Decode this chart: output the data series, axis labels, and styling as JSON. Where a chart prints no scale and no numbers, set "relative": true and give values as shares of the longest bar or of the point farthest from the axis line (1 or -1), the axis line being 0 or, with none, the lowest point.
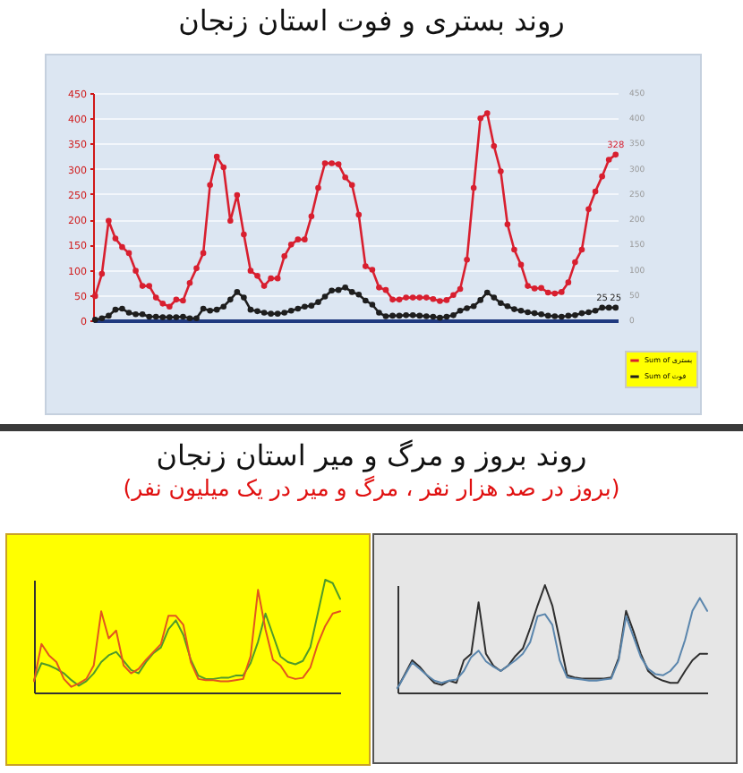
{
  "chart_data": [
    {
      "type": "line",
      "title": "روند بستری و فوت استان زنجان",
      "categories": [
        null,
        null,
        null,
        null,
        null,
        null,
        null,
        null,
        null,
        null,
        null,
        null,
        null,
        null,
        null,
        null,
        null,
        null,
        null,
        null,
        null,
        null,
        null,
        null,
        null,
        null,
        null,
        null,
        null,
        null,
        null,
        null,
        null,
        null,
        null,
        null,
        null,
        null,
        null,
        null,
        null,
        null,
        null,
        null,
        null,
        null,
        null,
        null,
        null,
        null,
        null,
        null,
        null,
        null,
        null,
        null,
        null,
        null,
        null,
        null,
        null,
        null,
        null,
        null,
        null,
        null,
        null,
        null,
        null,
        null,
        null,
        null,
        null,
        null,
        null,
        null,
        null,
        null
      ],
      "series": [
        {
          "name": "Sum of بستری",
          "color": "#d81f2f",
          "values": [
            48,
            92,
            197,
            162,
            145,
            133,
            98,
            68,
            68,
            45,
            33,
            27,
            41,
            39,
            74,
            103,
            133,
            268,
            324,
            303,
            197,
            248,
            170,
            98,
            88,
            68,
            83,
            83,
            127,
            150,
            160,
            160,
            206,
            262,
            311,
            311,
            309,
            283,
            268,
            209,
            107,
            100,
            65,
            60,
            41,
            41,
            45,
            45,
            45,
            45,
            42,
            38,
            40,
            50,
            62,
            120,
            262,
            400,
            410,
            345,
            295,
            190,
            140,
            110,
            68,
            63,
            64,
            55,
            53,
            56,
            75,
            115,
            140,
            220,
            255,
            285,
            318,
            328
          ],
          "value_labels": [
            null,
            null,
            null,
            null,
            null,
            null,
            null,
            null,
            null,
            null,
            null,
            null,
            null,
            null,
            null,
            null,
            null,
            null,
            null,
            null,
            null,
            null,
            null,
            null,
            null,
            null,
            null,
            null,
            null,
            null,
            null,
            null,
            null,
            null,
            null,
            null,
            null,
            null,
            null,
            null,
            null,
            null,
            null,
            null,
            null,
            null,
            null,
            null,
            null,
            null,
            null,
            null,
            null,
            null,
            null,
            null,
            null,
            null,
            null,
            null,
            null,
            null,
            null,
            null,
            null,
            null,
            null,
            null,
            null,
            null,
            null,
            null,
            null,
            null,
            null,
            null,
            null,
            "328"
          ]
        },
        {
          "name": "Sum of فوت",
          "color": "#1e1e1e",
          "axis": "y2",
          "values": [
            1,
            4,
            9,
            21,
            23,
            15,
            12,
            12,
            7,
            7,
            6,
            6,
            6,
            7,
            4,
            4,
            23,
            19,
            21,
            27,
            41,
            56,
            45,
            21,
            18,
            15,
            13,
            13,
            15,
            19,
            23,
            27,
            29,
            36,
            47,
            59,
            60,
            65,
            56,
            51,
            39,
            31,
            15,
            8,
            9,
            9,
            10,
            10,
            9,
            8,
            7,
            5,
            7,
            10,
            19,
            24,
            28,
            40,
            55,
            45,
            34,
            28,
            22,
            19,
            16,
            14,
            12,
            9,
            8,
            7,
            9,
            10,
            14,
            16,
            19,
            25,
            25,
            25
          ],
          "value_labels": [
            null,
            null,
            null,
            null,
            null,
            null,
            null,
            null,
            null,
            null,
            null,
            null,
            null,
            null,
            null,
            null,
            null,
            null,
            null,
            null,
            null,
            null,
            null,
            null,
            null,
            null,
            null,
            null,
            null,
            null,
            null,
            null,
            null,
            null,
            null,
            null,
            null,
            null,
            null,
            null,
            null,
            null,
            null,
            null,
            null,
            null,
            null,
            null,
            null,
            null,
            null,
            null,
            null,
            null,
            null,
            null,
            null,
            null,
            null,
            null,
            null,
            null,
            null,
            null,
            null,
            null,
            null,
            null,
            null,
            null,
            null,
            null,
            null,
            null,
            null,
            "25",
            null,
            "25"
          ]
        }
      ],
      "ylim": [
        0,
        450
      ],
      "yticks": [
        0,
        50,
        100,
        150,
        200,
        250,
        300,
        350,
        400,
        450
      ],
      "y2lim": [
        0,
        450
      ],
      "y2ticks": [
        0,
        50,
        100,
        150,
        200,
        250,
        300,
        350,
        400,
        450
      ],
      "grid": "y",
      "legend": "bottom right",
      "marker": "circle"
    },
    {
      "type": "line",
      "title": "روند بروز و مرگ و میر استان زنجان",
      "subtitle": "(بروز در صد هزار نفر ، مرگ و میر در یک میلیون نفر)",
      "relative": true,
      "categories": [
        null,
        null,
        null,
        null,
        null,
        null,
        null,
        null,
        null,
        null,
        null,
        null,
        null,
        null,
        null,
        null,
        null,
        null,
        null,
        null,
        null,
        null,
        null,
        null,
        null,
        null,
        null,
        null,
        null,
        null,
        null,
        null,
        null,
        null,
        null,
        null,
        null,
        null,
        null,
        null,
        null,
        null
      ],
      "series": [
        {
          "color": "#4f9a2a",
          "values": [
            0.11,
            0.26,
            0.24,
            0.21,
            0.17,
            0.11,
            0.06,
            0.1,
            0.17,
            0.27,
            0.33,
            0.36,
            0.28,
            0.2,
            0.17,
            0.27,
            0.35,
            0.4,
            0.56,
            0.64,
            0.51,
            0.29,
            0.15,
            0.12,
            0.12,
            0.13,
            0.13,
            0.15,
            0.15,
            0.26,
            0.45,
            0.7,
            0.51,
            0.32,
            0.27,
            0.25,
            0.28,
            0.4,
            0.7,
            1,
            0.97,
            0.83
          ]
        },
        {
          "color": "#e2561e",
          "values": [
            0.1,
            0.43,
            0.33,
            0.27,
            0.12,
            0.05,
            0.08,
            0.12,
            0.24,
            0.72,
            0.48,
            0.55,
            0.24,
            0.17,
            0.21,
            0.29,
            0.36,
            0.43,
            0.68,
            0.68,
            0.6,
            0.27,
            0.12,
            0.11,
            0.11,
            0.1,
            0.1,
            0.11,
            0.12,
            0.32,
            0.91,
            0.56,
            0.29,
            0.24,
            0.14,
            0.12,
            0.13,
            0.22,
            0.43,
            0.59,
            0.7,
            0.72
          ]
        }
      ]
    },
    {
      "type": "line",
      "relative": true,
      "categories": [
        null,
        null,
        null,
        null,
        null,
        null,
        null,
        null,
        null,
        null,
        null,
        null,
        null,
        null,
        null,
        null,
        null,
        null,
        null,
        null,
        null,
        null,
        null,
        null,
        null,
        null,
        null,
        null,
        null,
        null,
        null,
        null,
        null,
        null,
        null,
        null,
        null,
        null,
        null,
        null,
        null,
        null,
        null
      ],
      "series": [
        {
          "color": "#2e2e2e",
          "values": [
            0.04,
            0.17,
            0.3,
            0.24,
            0.16,
            0.09,
            0.07,
            0.11,
            0.09,
            0.3,
            0.36,
            0.84,
            0.36,
            0.25,
            0.2,
            0.25,
            0.34,
            0.41,
            0.6,
            0.81,
            1,
            0.81,
            0.49,
            0.16,
            0.14,
            0.13,
            0.13,
            0.13,
            0.13,
            0.14,
            0.32,
            0.76,
            0.57,
            0.36,
            0.2,
            0.14,
            0.11,
            0.09,
            0.09,
            0.2,
            0.3,
            0.36,
            0.36
          ]
        },
        {
          "color": "#5b86ad",
          "values": [
            0.04,
            0.16,
            0.28,
            0.22,
            0.16,
            0.11,
            0.09,
            0.11,
            0.12,
            0.2,
            0.33,
            0.39,
            0.29,
            0.24,
            0.2,
            0.25,
            0.3,
            0.36,
            0.47,
            0.71,
            0.73,
            0.63,
            0.3,
            0.14,
            0.13,
            0.12,
            0.11,
            0.11,
            0.12,
            0.13,
            0.3,
            0.71,
            0.52,
            0.33,
            0.22,
            0.17,
            0.16,
            0.2,
            0.28,
            0.49,
            0.76,
            0.88,
            0.76
          ]
        }
      ]
    }
  ]
}
